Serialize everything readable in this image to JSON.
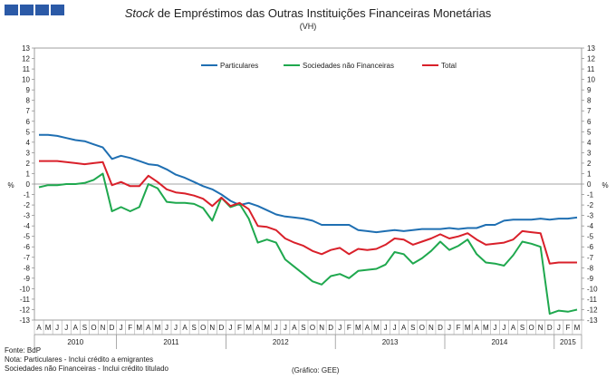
{
  "header": {
    "title_italic": "Stock",
    "title_rest": " de Empréstimos das Outras Instituições Financeiras Monetárias",
    "subtitle": "(VH)",
    "logo_color": "#2b5aa7"
  },
  "footer": {
    "source": "Fonte: BdP",
    "note_1": "Nota: Particulares - Inclui crédito a emigrantes",
    "note_2": "Sociedades não Financeiras - Inclui crédito titulado",
    "credit": "(Gráfico: GEE)"
  },
  "chart_data": {
    "type": "line",
    "title": "Stock de Empréstimos das Outras Instituições Financeiras Monetárias",
    "subtitle": "(VH)",
    "ylabel_left": "%",
    "ylabel_right": "%",
    "ylim": [
      -13,
      13
    ],
    "yticks": [
      -13,
      -12,
      -11,
      -10,
      -9,
      -8,
      -7,
      -6,
      -5,
      -4,
      -3,
      -2,
      -1,
      0,
      1,
      2,
      3,
      4,
      5,
      6,
      7,
      8,
      9,
      10,
      11,
      12,
      13
    ],
    "grid": false,
    "legend": "top-center",
    "months": [
      "A",
      "M",
      "J",
      "J",
      "A",
      "S",
      "O",
      "N",
      "D",
      "J",
      "F",
      "M",
      "A",
      "M",
      "J",
      "J",
      "A",
      "S",
      "O",
      "N",
      "D",
      "J",
      "F",
      "M",
      "A",
      "M",
      "J",
      "J",
      "A",
      "S",
      "O",
      "N",
      "D",
      "J",
      "F",
      "M",
      "A",
      "M",
      "J",
      "J",
      "A",
      "S",
      "O",
      "N",
      "D",
      "J",
      "F",
      "M",
      "A",
      "M",
      "J",
      "J",
      "A",
      "S",
      "O",
      "N",
      "D",
      "J",
      "F",
      "M"
    ],
    "years": [
      {
        "label": "2010",
        "months": 9
      },
      {
        "label": "2011",
        "months": 12
      },
      {
        "label": "2012",
        "months": 12
      },
      {
        "label": "2013",
        "months": 12
      },
      {
        "label": "2014",
        "months": 12
      },
      {
        "label": "2015",
        "months": 3
      }
    ],
    "series": [
      {
        "name": "Particulares",
        "color": "#1f6fb2",
        "values": [
          4.7,
          4.7,
          4.6,
          4.4,
          4.2,
          4.1,
          3.8,
          3.5,
          2.4,
          2.7,
          2.5,
          2.2,
          1.9,
          1.8,
          1.4,
          0.9,
          0.6,
          0.2,
          -0.2,
          -0.5,
          -1.0,
          -1.6,
          -2.0,
          -1.8,
          -2.1,
          -2.5,
          -2.9,
          -3.1,
          -3.2,
          -3.3,
          -3.5,
          -3.9,
          -3.9,
          -3.9,
          -3.9,
          -4.4,
          -4.5,
          -4.6,
          -4.5,
          -4.4,
          -4.5,
          -4.4,
          -4.3,
          -4.3,
          -4.3,
          -4.2,
          -4.3,
          -4.2,
          -4.2,
          -3.9,
          -3.9,
          -3.5,
          -3.4,
          -3.4,
          -3.4,
          -3.3,
          -3.4,
          -3.3,
          -3.3,
          -3.2
        ]
      },
      {
        "name": "Sociedades não Financeiras",
        "color": "#1fa84e",
        "values": [
          -0.3,
          -0.1,
          -0.1,
          0.0,
          0.0,
          0.1,
          0.4,
          1.0,
          -2.6,
          -2.2,
          -2.6,
          -2.2,
          0.0,
          -0.4,
          -1.7,
          -1.8,
          -1.8,
          -1.9,
          -2.3,
          -3.5,
          -1.3,
          -2.2,
          -1.9,
          -3.3,
          -5.6,
          -5.3,
          -5.6,
          -7.2,
          -7.9,
          -8.6,
          -9.3,
          -9.6,
          -8.8,
          -8.6,
          -9.0,
          -8.3,
          -8.2,
          -8.1,
          -7.7,
          -6.5,
          -6.7,
          -7.6,
          -7.1,
          -6.4,
          -5.5,
          -6.3,
          -5.9,
          -5.3,
          -6.7,
          -7.5,
          -7.6,
          -7.8,
          -6.8,
          -5.5,
          -5.7,
          -6.0,
          -12.4,
          -12.1,
          -12.2,
          -12.0
        ]
      },
      {
        "name": "Total",
        "color": "#d9202a",
        "values": [
          2.2,
          2.2,
          2.2,
          2.1,
          2.0,
          1.9,
          2.0,
          2.1,
          -0.1,
          0.2,
          -0.2,
          -0.2,
          0.8,
          0.2,
          -0.5,
          -0.8,
          -0.9,
          -1.1,
          -1.4,
          -2.1,
          -1.3,
          -2.1,
          -1.8,
          -2.4,
          -4.0,
          -4.1,
          -4.4,
          -5.2,
          -5.6,
          -5.9,
          -6.4,
          -6.7,
          -6.3,
          -6.1,
          -6.7,
          -6.2,
          -6.3,
          -6.2,
          -5.8,
          -5.2,
          -5.3,
          -5.8,
          -5.5,
          -5.2,
          -4.8,
          -5.2,
          -5.0,
          -4.7,
          -5.3,
          -5.8,
          -5.7,
          -5.6,
          -5.3,
          -4.5,
          -4.6,
          -4.7,
          -7.6,
          -7.5,
          -7.5,
          -7.5
        ]
      }
    ]
  }
}
